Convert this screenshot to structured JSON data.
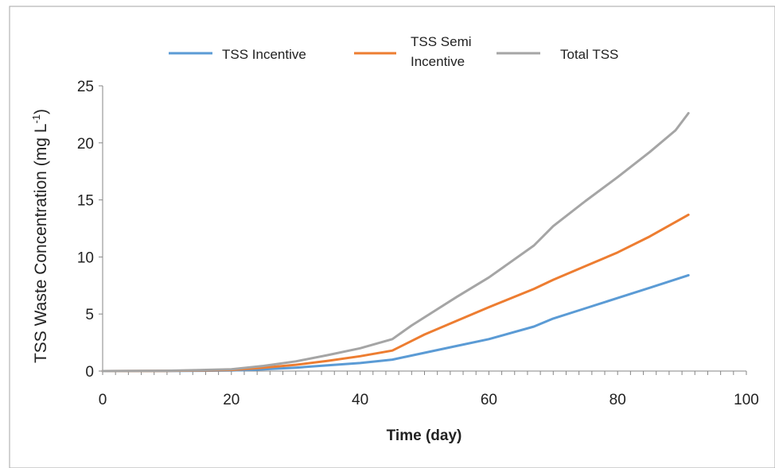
{
  "chart_data": {
    "type": "line",
    "title": "",
    "xlabel": "Time (day)",
    "ylabel": "TSS Waste Concentration (mg L",
    "ylabel_sup": "-1",
    "ylabel_close": ")",
    "xlim": [
      0,
      100
    ],
    "ylim": [
      0,
      25
    ],
    "xticks": [
      0,
      20,
      40,
      60,
      80,
      100
    ],
    "yticks": [
      0,
      5,
      10,
      15,
      20,
      25
    ],
    "grid": false,
    "legend_position": "top",
    "series": [
      {
        "name": "TSS Incentive",
        "color": "#5B9BD5",
        "points": [
          [
            0,
            0
          ],
          [
            10,
            0.01
          ],
          [
            20,
            0.05
          ],
          [
            25,
            0.15
          ],
          [
            30,
            0.3
          ],
          [
            35,
            0.5
          ],
          [
            40,
            0.7
          ],
          [
            45,
            1.0
          ],
          [
            50,
            1.6
          ],
          [
            55,
            2.2
          ],
          [
            60,
            2.8
          ],
          [
            67,
            3.9
          ],
          [
            70,
            4.6
          ],
          [
            75,
            5.5
          ],
          [
            80,
            6.4
          ],
          [
            85,
            7.3
          ],
          [
            91,
            8.4
          ]
        ]
      },
      {
        "name": "TSS Semi Incentive",
        "name_lines": [
          "TSS Semi",
          "Incentive"
        ],
        "color": "#ED7D31",
        "points": [
          [
            0,
            0
          ],
          [
            10,
            0.02
          ],
          [
            20,
            0.1
          ],
          [
            25,
            0.3
          ],
          [
            30,
            0.55
          ],
          [
            35,
            0.9
          ],
          [
            40,
            1.3
          ],
          [
            45,
            1.8
          ],
          [
            50,
            3.2
          ],
          [
            55,
            4.4
          ],
          [
            60,
            5.6
          ],
          [
            67,
            7.2
          ],
          [
            70,
            8.0
          ],
          [
            75,
            9.2
          ],
          [
            80,
            10.4
          ],
          [
            85,
            11.8
          ],
          [
            91,
            13.7
          ]
        ]
      },
      {
        "name": "Total TSS",
        "color": "#A5A5A5",
        "points": [
          [
            0,
            0
          ],
          [
            10,
            0.03
          ],
          [
            20,
            0.15
          ],
          [
            25,
            0.45
          ],
          [
            30,
            0.85
          ],
          [
            35,
            1.4
          ],
          [
            40,
            2.0
          ],
          [
            45,
            2.8
          ],
          [
            48,
            4.0
          ],
          [
            55,
            6.5
          ],
          [
            60,
            8.2
          ],
          [
            67,
            11.0
          ],
          [
            70,
            12.7
          ],
          [
            75,
            14.9
          ],
          [
            80,
            17.0
          ],
          [
            85,
            19.2
          ],
          [
            89,
            21.1
          ],
          [
            91,
            22.6
          ]
        ]
      }
    ]
  }
}
